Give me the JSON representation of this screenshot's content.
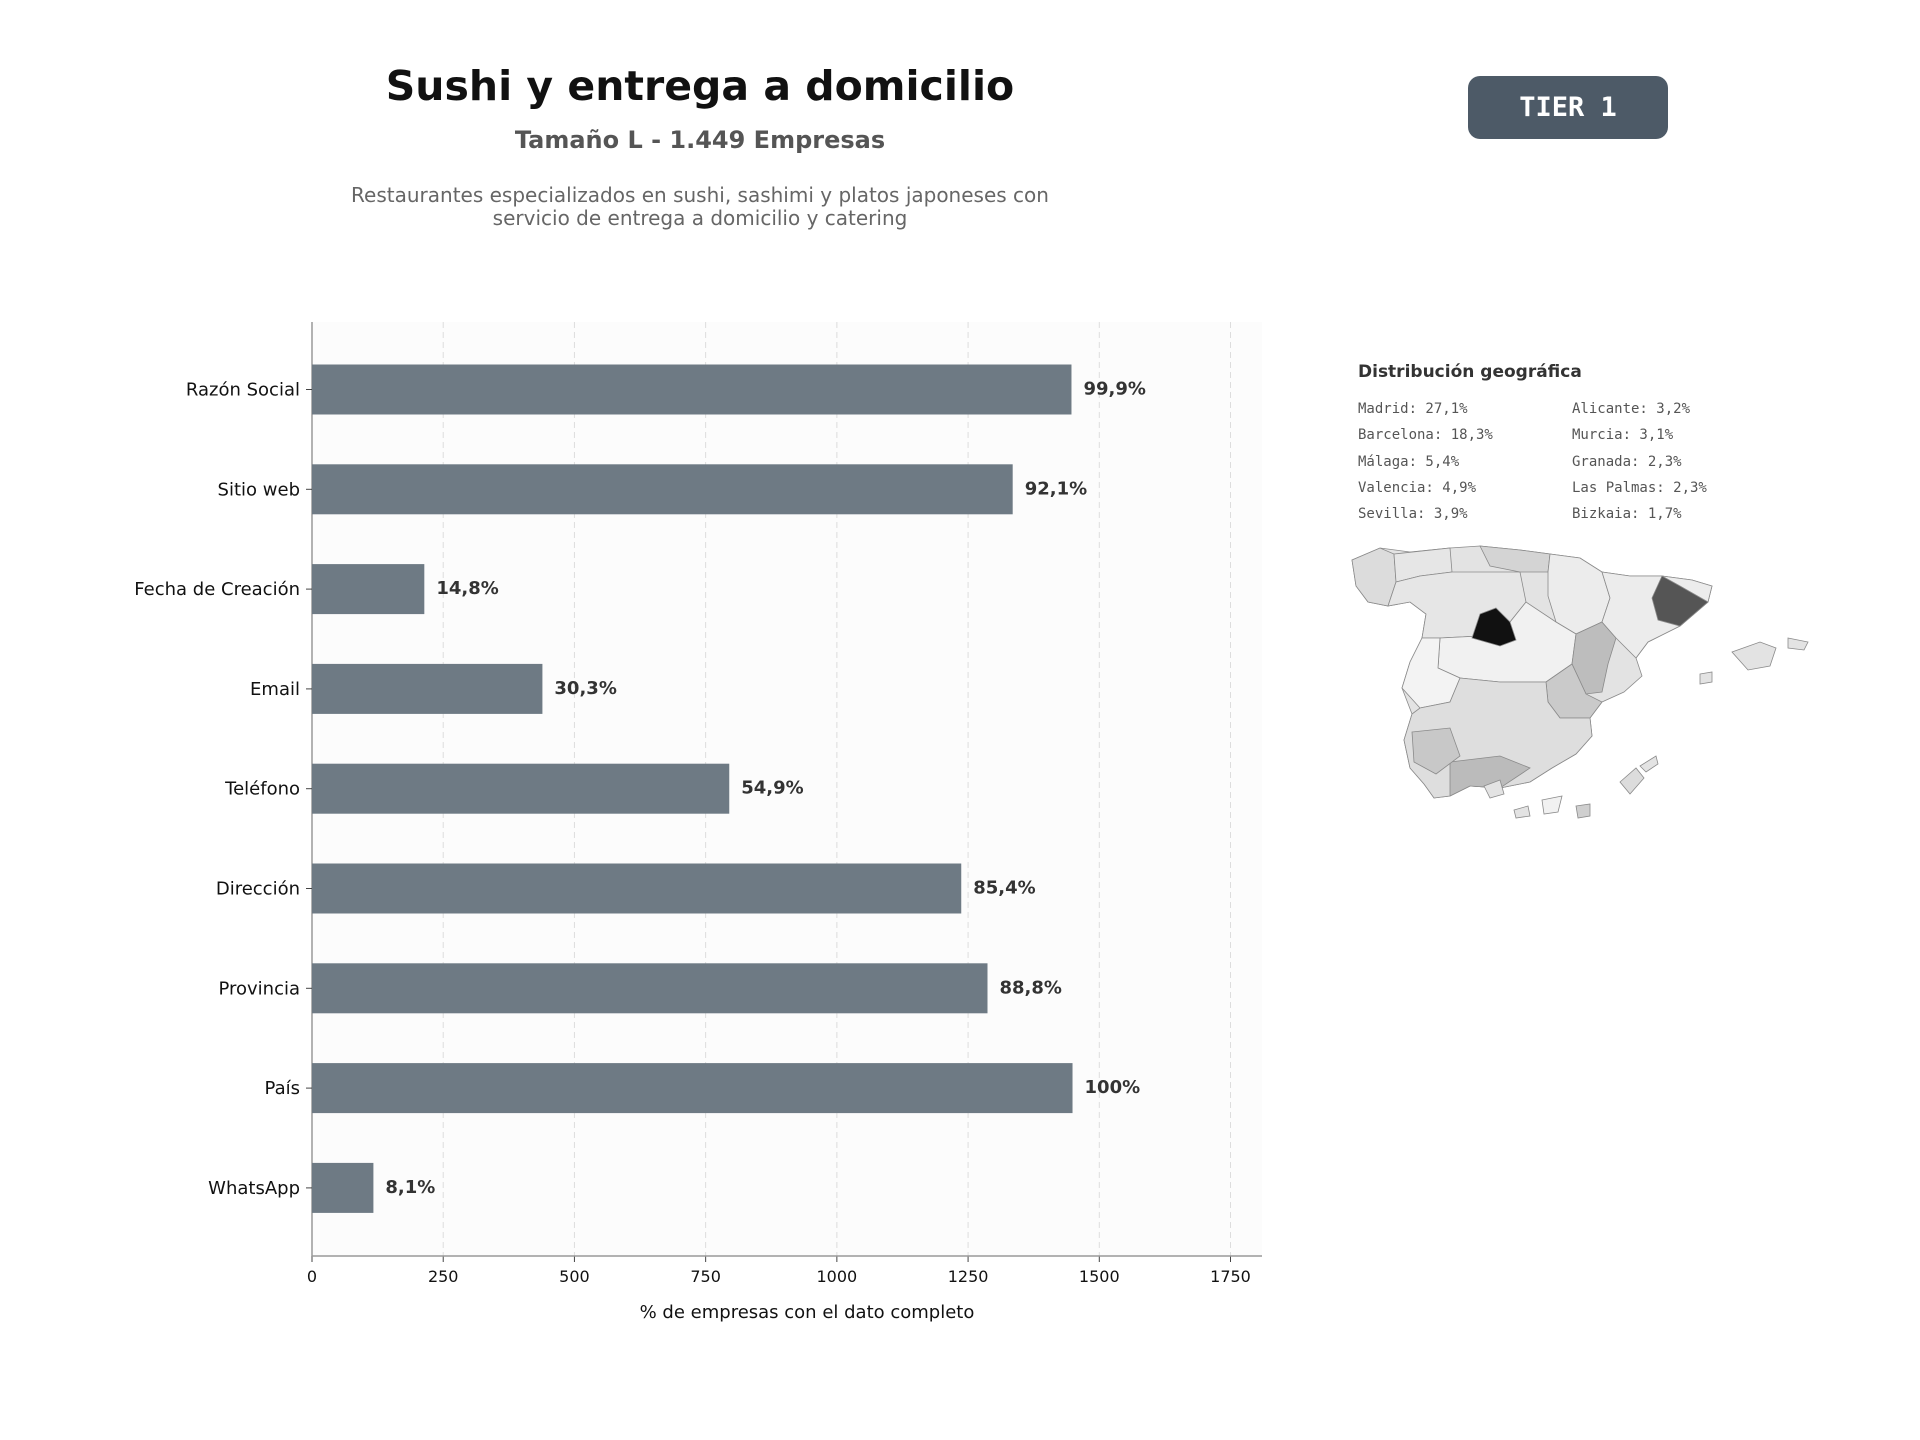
{
  "header": {
    "title": "Sushi y entrega a domicilio",
    "subtitle": "Tamaño L - 1.449 Empresas",
    "description_line1": "Restaurantes especializados en sushi, sashimi y platos japoneses con",
    "description_line2": "servicio de entrega a domicilio y catering",
    "tier_label": "TIER 1"
  },
  "colors": {
    "bar": "#6e7a84",
    "badge": "#4d5a67",
    "madrid": "#111111",
    "barcelona": "#555555"
  },
  "chart_data": {
    "type": "bar",
    "orientation": "horizontal",
    "categories": [
      "Razón Social",
      "Sitio web",
      "Fecha de Creación",
      "Email",
      "Teléfono",
      "Dirección",
      "Provincia",
      "País",
      "WhatsApp"
    ],
    "values": [
      1447,
      1335,
      214,
      439,
      795,
      1237,
      1287,
      1449,
      117
    ],
    "labels": [
      "99,9%",
      "92,1%",
      "14,8%",
      "30,3%",
      "54,9%",
      "85,4%",
      "88,8%",
      "100%",
      "8,1%"
    ],
    "xlabel": "% de empresas con el dato completo",
    "xlim": [
      0,
      1810
    ],
    "xticks": [
      0,
      250,
      500,
      750,
      1000,
      1250,
      1500,
      1750
    ],
    "grid": "x",
    "legend": "none"
  },
  "geo": {
    "title": "Distribución geográfica",
    "left": [
      "Madrid: 27,1%",
      "Barcelona: 18,3%",
      "Málaga: 5,4%",
      "Valencia: 4,9%",
      "Sevilla: 3,9%"
    ],
    "right": [
      "Alicante: 3,2%",
      "Murcia: 3,1%",
      "Granada: 2,3%",
      "Las Palmas: 2,3%",
      "Bizkaia: 1,7%"
    ]
  }
}
